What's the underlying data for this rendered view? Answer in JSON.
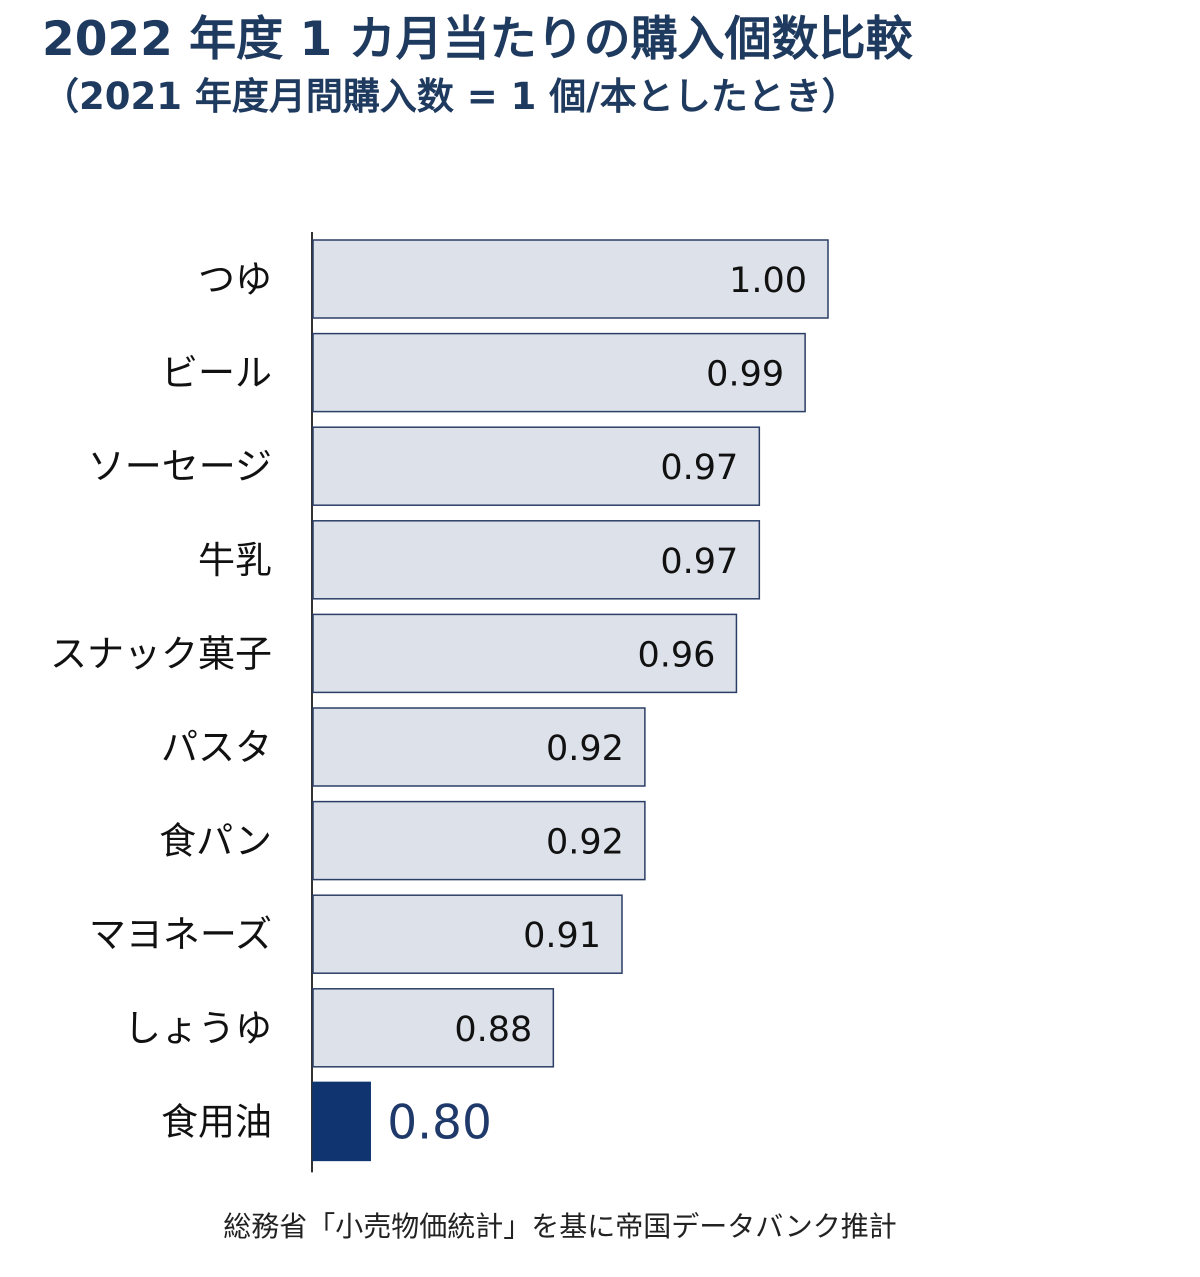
{
  "title": "2022 年度 1 カ月当たりの購入個数比較",
  "subtitle": "（2021 年度月間購入数 = 1 個/本としたとき）",
  "source": "総務省「小売物価統計」を基に帝国データバンク推計",
  "colors": {
    "bar_fill": "#dde1e9",
    "bar_stroke": "#2b3e66",
    "highlight_fill": "#0f3470",
    "highlight_text": "#1f3a6a",
    "axis": "#333333",
    "label_text": "#111111",
    "title_text": "#1f3a5f"
  },
  "chart_data": {
    "type": "bar",
    "orientation": "horizontal",
    "categories": [
      "つゆ",
      "ビール",
      "ソーセージ",
      "牛乳",
      "スナック菓子",
      "パスタ",
      "食パン",
      "マヨネーズ",
      "しょうゆ",
      "食用油"
    ],
    "values": [
      1.0,
      0.99,
      0.97,
      0.97,
      0.96,
      0.92,
      0.92,
      0.91,
      0.88,
      0.8
    ],
    "value_labels": [
      "1.00",
      "0.99",
      "0.97",
      "0.97",
      "0.96",
      "0.92",
      "0.92",
      "0.91",
      "0.88",
      "0.80"
    ],
    "highlight_category": "食用油",
    "xlim": [
      0.775,
      1.0
    ],
    "grid": false,
    "legend": "none",
    "xlabel": "",
    "ylabel": ""
  }
}
